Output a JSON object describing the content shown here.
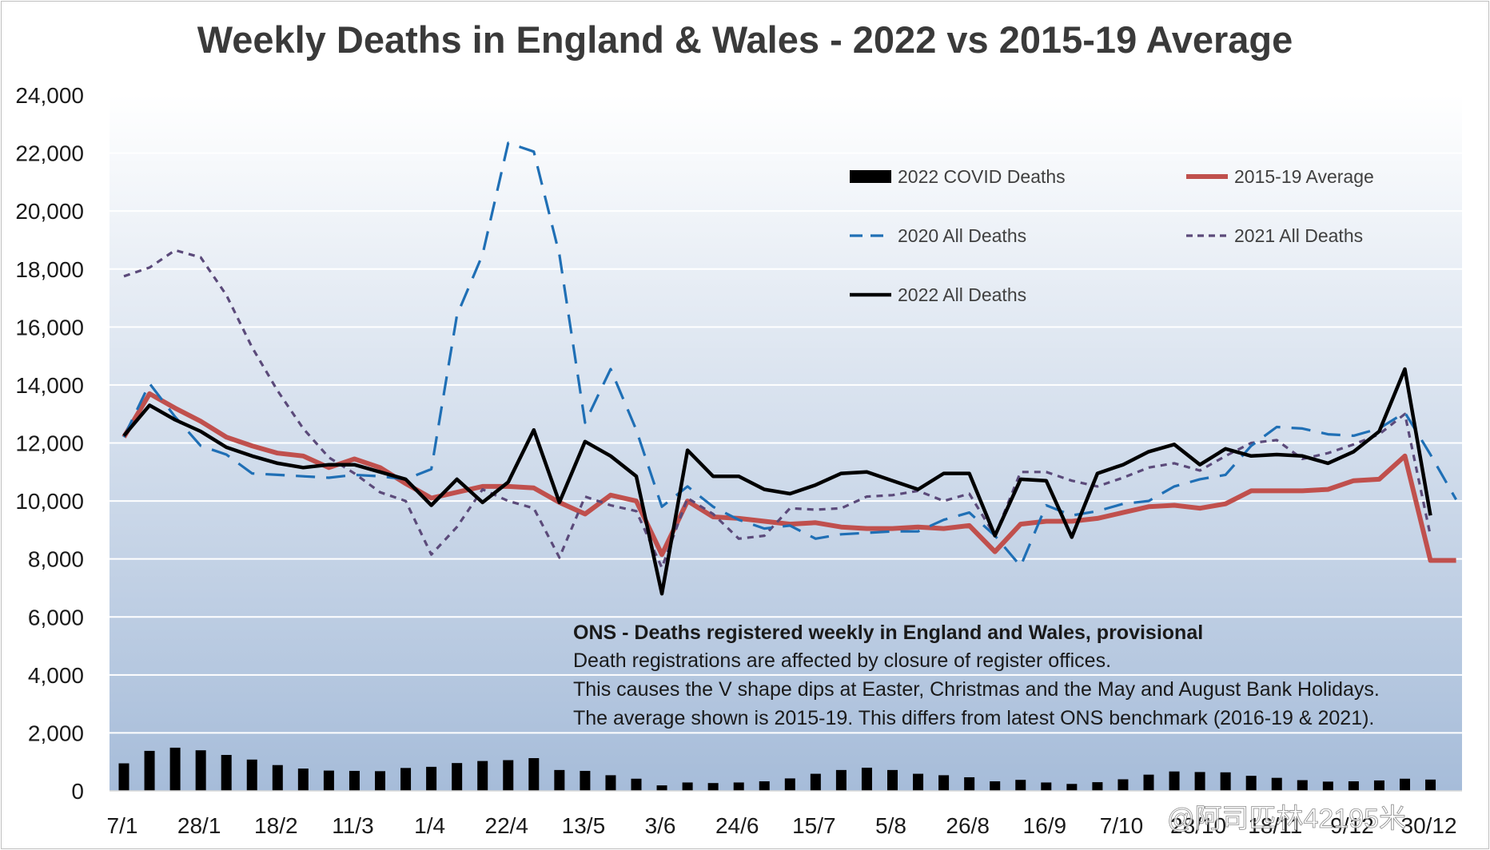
{
  "chart_data": {
    "type": "line",
    "title": "Weekly Deaths in England & Wales - 2022 vs 2015-19 Average",
    "xlabel": "",
    "ylabel": "",
    "ylim": [
      0,
      24000
    ],
    "yticks": [
      0,
      2000,
      4000,
      6000,
      8000,
      10000,
      12000,
      14000,
      16000,
      18000,
      20000,
      22000,
      24000
    ],
    "ytick_labels": [
      "0",
      "2,000",
      "4,000",
      "6,000",
      "8,000",
      "10,000",
      "12,000",
      "14,000",
      "16,000",
      "18,000",
      "20,000",
      "22,000",
      "24,000"
    ],
    "xtick_labels": [
      "7/1",
      "28/1",
      "18/2",
      "11/3",
      "1/4",
      "22/4",
      "13/5",
      "3/6",
      "24/6",
      "15/7",
      "5/8",
      "26/8",
      "16/9",
      "7/10",
      "28/10",
      "18/11",
      "9/12",
      "30/12"
    ],
    "grid": true,
    "legend": "top-right",
    "series": [
      {
        "name": "2022 COVID Deaths",
        "type": "bar",
        "color": "#000000",
        "values": [
          950,
          1380,
          1490,
          1400,
          1240,
          1080,
          890,
          770,
          700,
          690,
          680,
          790,
          830,
          960,
          1030,
          1060,
          1130,
          720,
          690,
          540,
          420,
          190,
          290,
          270,
          290,
          330,
          430,
          590,
          720,
          800,
          720,
          590,
          540,
          470,
          330,
          380,
          290,
          240,
          300,
          400,
          560,
          670,
          650,
          640,
          520,
          450,
          370,
          320,
          330,
          360,
          420,
          390
        ]
      },
      {
        "name": "2015-19 Average",
        "type": "line",
        "color": "#c0504d",
        "values": [
          12200,
          13700,
          13200,
          12750,
          12200,
          11900,
          11650,
          11550,
          11150,
          11450,
          11150,
          10600,
          10100,
          10300,
          10500,
          10500,
          10450,
          9950,
          9550,
          10200,
          10000,
          8150,
          10000,
          9450,
          9400,
          9300,
          9200,
          9250,
          9100,
          9050,
          9050,
          9100,
          9050,
          9150,
          8250,
          9200,
          9300,
          9300,
          9400,
          9600,
          9800,
          9850,
          9750,
          9900,
          10350,
          10350,
          10350,
          10400,
          10700,
          10750,
          11550,
          7950,
          7950
        ]
      },
      {
        "name": "2020 All Deaths",
        "type": "line",
        "color": "#1f6fb5",
        "values": [
          12200,
          14050,
          12900,
          11900,
          11600,
          10950,
          10900,
          10850,
          10800,
          10900,
          10850,
          10750,
          11100,
          16400,
          18500,
          22350,
          22050,
          18500,
          12700,
          14550,
          12450,
          9800,
          10500,
          9800,
          9350,
          9050,
          9150,
          8700,
          8850,
          8900,
          8950,
          8950,
          9350,
          9600,
          8800,
          7750,
          9850,
          9500,
          9650,
          9900,
          10000,
          10500,
          10750,
          10900,
          11900,
          12550,
          12500,
          12300,
          12250,
          12500,
          13050,
          11600,
          10050
        ]
      },
      {
        "name": "2021 All Deaths",
        "type": "line",
        "color": "#5b4a7a",
        "values": [
          17750,
          18050,
          18650,
          18400,
          17100,
          15300,
          13800,
          12500,
          11500,
          10950,
          10300,
          10000,
          8150,
          9100,
          10400,
          10000,
          9750,
          8050,
          10150,
          9850,
          9650,
          7700,
          10100,
          9550,
          8700,
          8800,
          9750,
          9700,
          9750,
          10150,
          10200,
          10350,
          10000,
          10250,
          8800,
          11000,
          11000,
          10700,
          10500,
          10800,
          11150,
          11300,
          11050,
          11550,
          12000,
          12100,
          11450,
          11650,
          11950,
          12300,
          13000,
          8800,
          null
        ]
      },
      {
        "name": "2022 All Deaths",
        "type": "line",
        "color": "#000000",
        "values": [
          12250,
          13300,
          12800,
          12400,
          11850,
          11550,
          11300,
          11150,
          11250,
          11250,
          11000,
          10750,
          9850,
          10750,
          9950,
          10650,
          12450,
          9950,
          12050,
          11550,
          10850,
          6800,
          11750,
          10850,
          10850,
          10400,
          10250,
          10550,
          10950,
          11000,
          10700,
          10400,
          10950,
          10950,
          8800,
          10750,
          10700,
          8750,
          10950,
          11250,
          11700,
          11950,
          11250,
          11800,
          11550,
          11600,
          11550,
          11300,
          11700,
          12400,
          14550,
          9500,
          null
        ]
      }
    ],
    "annotation": {
      "heading": "ONS - Deaths registered weekly in England and Wales, provisional",
      "lines": [
        "Death registrations are affected by closure of register offices.",
        "This causes the V shape dips at Easter, Christmas and the May and August Bank Holidays.",
        "The average shown is 2015-19. This differs from latest ONS benchmark (2016-19 & 2021)."
      ]
    }
  },
  "watermark": "@阿司匹林42195米"
}
